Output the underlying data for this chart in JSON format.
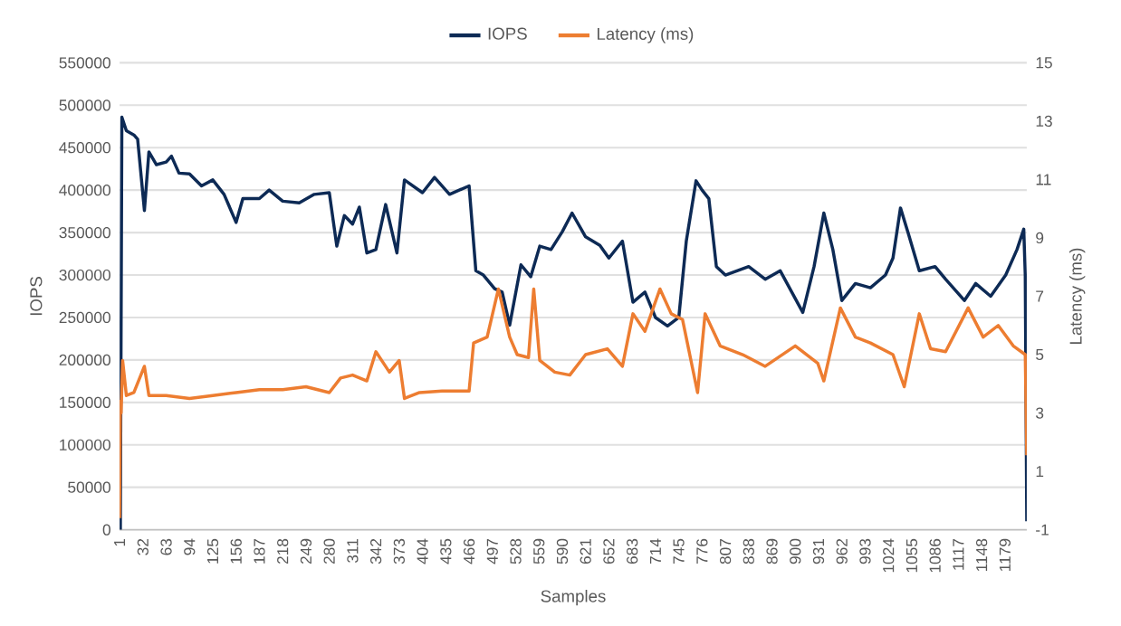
{
  "chart_data": {
    "type": "line",
    "xlabel": "Samples",
    "ylabel": "IOPS",
    "y2label": "Latency (ms)",
    "xlim": [
      1,
      1208
    ],
    "xticks": [
      1,
      32,
      63,
      94,
      125,
      156,
      187,
      218,
      249,
      280,
      311,
      342,
      373,
      404,
      435,
      466,
      497,
      528,
      559,
      590,
      621,
      652,
      683,
      714,
      745,
      776,
      807,
      838,
      869,
      900,
      931,
      962,
      993,
      1024,
      1055,
      1086,
      1117,
      1148,
      1179
    ],
    "ylim": [
      0,
      550000
    ],
    "yticks": [
      0,
      50000,
      100000,
      150000,
      200000,
      250000,
      300000,
      350000,
      400000,
      450000,
      500000,
      550000
    ],
    "y2lim": [
      -1,
      15
    ],
    "y2ticks": [
      -1,
      1,
      3,
      5,
      7,
      9,
      11,
      13,
      15
    ],
    "grid": "y",
    "legend": "top",
    "marker": "none",
    "line_style": "solid",
    "series": [
      {
        "name": "IOPS",
        "color": "#0d2a55",
        "x": [
          1,
          2,
          4,
          10,
          20,
          25,
          34,
          40,
          50,
          63,
          70,
          80,
          94,
          110,
          125,
          140,
          156,
          165,
          187,
          200,
          218,
          240,
          260,
          280,
          290,
          300,
          311,
          320,
          330,
          342,
          355,
          370,
          380,
          404,
          420,
          440,
          466,
          475,
          485,
          500,
          510,
          520,
          535,
          548,
          560,
          575,
          590,
          603,
          621,
          640,
          652,
          670,
          684,
          700,
          714,
          730,
          745,
          755,
          768,
          776,
          785,
          795,
          807,
          838,
          860,
          880,
          910,
          925,
          938,
          950,
          962,
          980,
          1000,
          1020,
          1030,
          1040,
          1050,
          1065,
          1086,
          1100,
          1125,
          1140,
          1160,
          1180,
          1195,
          1204,
          1206,
          1208
        ],
        "values": [
          45000,
          0,
          486000,
          470000,
          465000,
          460000,
          376000,
          445000,
          430000,
          433000,
          440000,
          420000,
          419000,
          405000,
          412000,
          395000,
          362000,
          390000,
          390000,
          400000,
          387000,
          385000,
          395000,
          397000,
          334000,
          370000,
          360000,
          380000,
          326000,
          330000,
          383000,
          326000,
          412000,
          397000,
          415000,
          395000,
          405000,
          305000,
          300000,
          284000,
          280000,
          241000,
          312000,
          298000,
          334000,
          330000,
          351000,
          373000,
          345000,
          335000,
          320000,
          340000,
          268000,
          280000,
          250000,
          240000,
          250000,
          340000,
          411000,
          400000,
          390000,
          310000,
          300000,
          310000,
          295000,
          305000,
          256000,
          310000,
          373000,
          330000,
          270000,
          290000,
          285000,
          300000,
          320000,
          379000,
          350000,
          305000,
          310000,
          295000,
          270000,
          290000,
          275000,
          300000,
          330000,
          354000,
          300000,
          10000
        ]
      },
      {
        "name": "Latency (ms)",
        "color": "#ed7d31",
        "axis": "y2",
        "x": [
          1,
          2,
          3,
          5,
          10,
          20,
          34,
          40,
          63,
          94,
          125,
          156,
          187,
          218,
          249,
          280,
          295,
          311,
          330,
          342,
          360,
          373,
          380,
          400,
          430,
          466,
          472,
          490,
          505,
          520,
          530,
          545,
          552,
          560,
          580,
          600,
          621,
          650,
          670,
          684,
          700,
          720,
          735,
          750,
          770,
          780,
          800,
          830,
          860,
          900,
          930,
          938,
          960,
          980,
          1000,
          1030,
          1045,
          1065,
          1080,
          1100,
          1130,
          1150,
          1170,
          1190,
          1206,
          1208
        ],
        "values": [
          -0.6,
          3.4,
          3.0,
          4.8,
          3.6,
          3.7,
          4.6,
          3.6,
          3.6,
          3.5,
          3.6,
          3.7,
          3.8,
          3.8,
          3.9,
          3.7,
          4.2,
          4.3,
          4.1,
          5.1,
          4.4,
          4.8,
          3.5,
          3.7,
          3.75,
          3.75,
          5.4,
          5.6,
          7.25,
          5.6,
          5.0,
          4.9,
          7.25,
          4.8,
          4.4,
          4.3,
          5.0,
          5.2,
          4.6,
          6.4,
          5.8,
          7.25,
          6.4,
          6.2,
          3.7,
          6.4,
          5.3,
          5.0,
          4.6,
          5.3,
          4.7,
          4.1,
          6.6,
          5.6,
          5.4,
          5.0,
          3.9,
          6.4,
          5.2,
          5.1,
          6.6,
          5.6,
          6.0,
          5.3,
          5.0,
          1.55
        ]
      }
    ]
  }
}
